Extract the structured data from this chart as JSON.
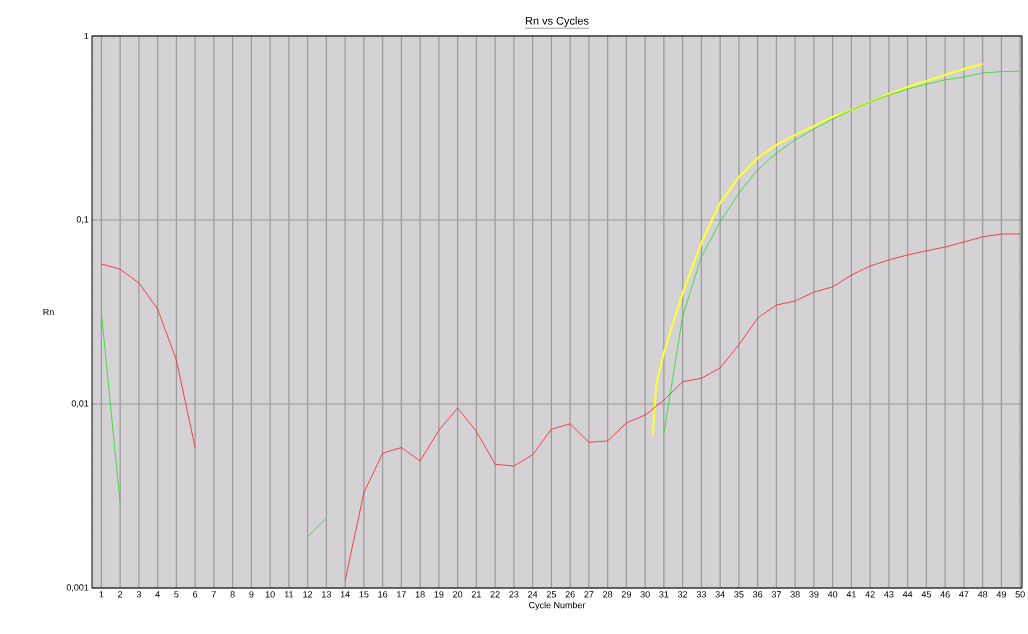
{
  "chart_data": {
    "type": "line",
    "title": "Rn vs Cycles",
    "xlabel": "Cycle Number",
    "ylabel": "Rn",
    "log": "y",
    "grid": true,
    "marker": "none",
    "line_style": "solid",
    "x": [
      1,
      2,
      3,
      4,
      5,
      6,
      7,
      8,
      9,
      10,
      11,
      12,
      13,
      14,
      15,
      16,
      17,
      18,
      19,
      20,
      21,
      22,
      23,
      24,
      25,
      26,
      27,
      28,
      29,
      30,
      31,
      32,
      33,
      34,
      35,
      36,
      37,
      38,
      39,
      40,
      41,
      42,
      43,
      44,
      45,
      46,
      47,
      48,
      49,
      50
    ],
    "xlim": [
      0.5,
      50.1
    ],
    "xticks": [
      1,
      2,
      3,
      4,
      5,
      6,
      7,
      8,
      9,
      10,
      11,
      12,
      13,
      14,
      15,
      16,
      17,
      18,
      19,
      20,
      21,
      22,
      23,
      24,
      25,
      26,
      27,
      28,
      29,
      30,
      31,
      32,
      33,
      34,
      35,
      36,
      37,
      38,
      39,
      40,
      41,
      42,
      43,
      44,
      45,
      46,
      47,
      48,
      49,
      50
    ],
    "ylim": [
      0.001,
      1
    ],
    "yticks": [
      {
        "value": 0.001,
        "label": "0,001"
      },
      {
        "value": 0.01,
        "label": "0,01"
      },
      {
        "value": 0.1,
        "label": "0,1"
      },
      1
    ],
    "series": [
      {
        "color": "#ff2020",
        "values": [
          0.0577,
          0.054,
          0.0455,
          0.0328,
          0.0173,
          0.0058,
          null,
          null,
          null,
          null,
          null,
          null,
          null,
          0.0011,
          0.0033,
          0.0054,
          0.0058,
          0.0049,
          0.0072,
          0.0095,
          0.0071,
          0.0047,
          0.0046,
          0.0053,
          0.0073,
          0.0078,
          0.0062,
          0.0063,
          0.0079,
          0.0087,
          0.0105,
          0.0132,
          0.0138,
          0.0157,
          0.021,
          0.0293,
          0.0345,
          0.0363,
          0.0406,
          0.0433,
          0.0502,
          0.0562,
          0.0607,
          0.0646,
          0.068,
          0.0713,
          0.0759,
          0.081,
          0.0839,
          0.084
        ]
      },
      {
        "color": "#22dd22",
        "values": [
          0.0313,
          0.0029,
          null,
          null,
          null,
          null,
          null,
          null,
          null,
          null,
          null,
          0.0019,
          0.0024,
          null,
          null,
          null,
          null,
          null,
          null,
          null,
          null,
          null,
          null,
          null,
          null,
          null,
          null,
          null,
          null,
          null,
          0.0069,
          0.03,
          0.063,
          0.098,
          0.14,
          0.187,
          0.231,
          0.272,
          0.312,
          0.354,
          0.396,
          0.438,
          0.478,
          0.515,
          0.548,
          0.577,
          0.599,
          0.629,
          0.64,
          0.645
        ]
      },
      {
        "color": "#ffff33",
        "x": [
          30.4,
          30.6,
          31,
          32,
          33,
          34,
          35,
          36,
          37,
          38,
          39,
          40,
          41,
          42,
          43,
          44,
          45,
          46,
          47,
          48
        ],
        "values": [
          0.0068,
          0.013,
          0.019,
          0.04,
          0.075,
          0.124,
          0.171,
          0.217,
          0.256,
          0.29,
          0.324,
          0.363,
          0.396,
          0.438,
          0.484,
          0.528,
          0.569,
          0.614,
          0.662,
          0.704
        ]
      }
    ]
  }
}
